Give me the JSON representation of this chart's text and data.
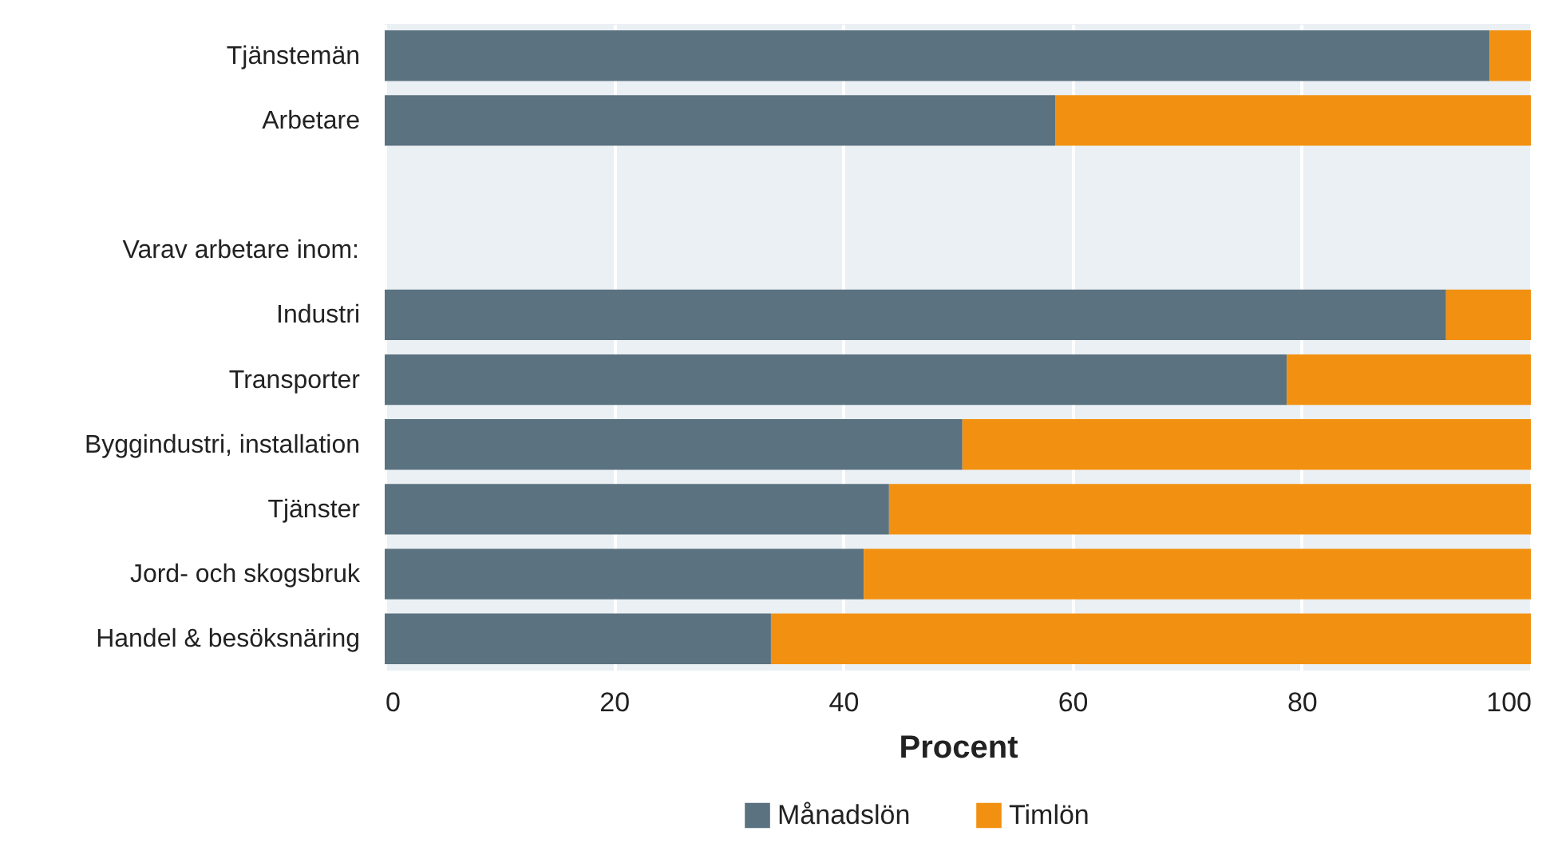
{
  "chart_data": {
    "type": "bar",
    "orientation": "horizontal",
    "stacked": true,
    "xlabel": "Procent",
    "annotations": [
      "Varav arbetare inom:"
    ],
    "categories": [
      "Tjänstemän",
      "Arbetare",
      null,
      null,
      "Industri",
      "Transporter",
      "Byggindustri, installation",
      "Tjänster",
      "Jord- och skogsbruk",
      "Handel & besöksnäring"
    ],
    "series": [
      {
        "name": "Månadslön",
        "color": "#5b7280",
        "values": [
          96.4,
          58.5,
          null,
          null,
          92.6,
          78.7,
          50.4,
          44.0,
          41.8,
          33.7
        ]
      },
      {
        "name": "Timlön",
        "color": "#f29111",
        "values": [
          3.6,
          41.5,
          null,
          null,
          7.4,
          21.3,
          49.6,
          56.0,
          58.2,
          66.3
        ]
      }
    ],
    "xlim": [
      0,
      100
    ],
    "xticks": [
      0,
      20,
      40,
      60,
      80,
      100
    ],
    "grid": "x",
    "legend": "bottom"
  }
}
